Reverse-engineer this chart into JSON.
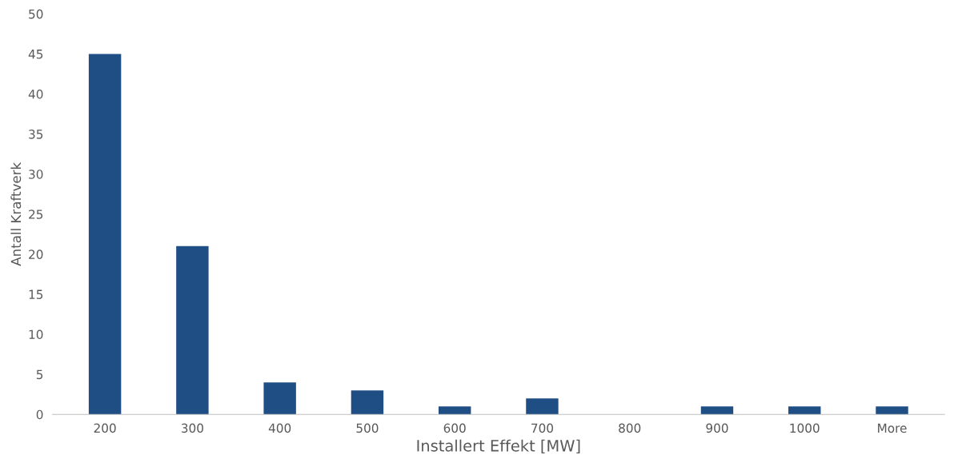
{
  "chart_data": {
    "type": "bar",
    "xlabel": "Installert Effekt [MW]",
    "ylabel": "Antall Kraftverk",
    "categories": [
      "200",
      "300",
      "400",
      "500",
      "600",
      "700",
      "800",
      "900",
      "1000",
      "More"
    ],
    "values": [
      45,
      21,
      4,
      3,
      1,
      2,
      0,
      1,
      1,
      1
    ],
    "color": "#1f4e85",
    "ylim": [
      0,
      50
    ],
    "yticks": [
      0,
      5,
      10,
      15,
      20,
      25,
      30,
      35,
      40,
      45,
      50
    ],
    "grid": false,
    "legend": false
  }
}
